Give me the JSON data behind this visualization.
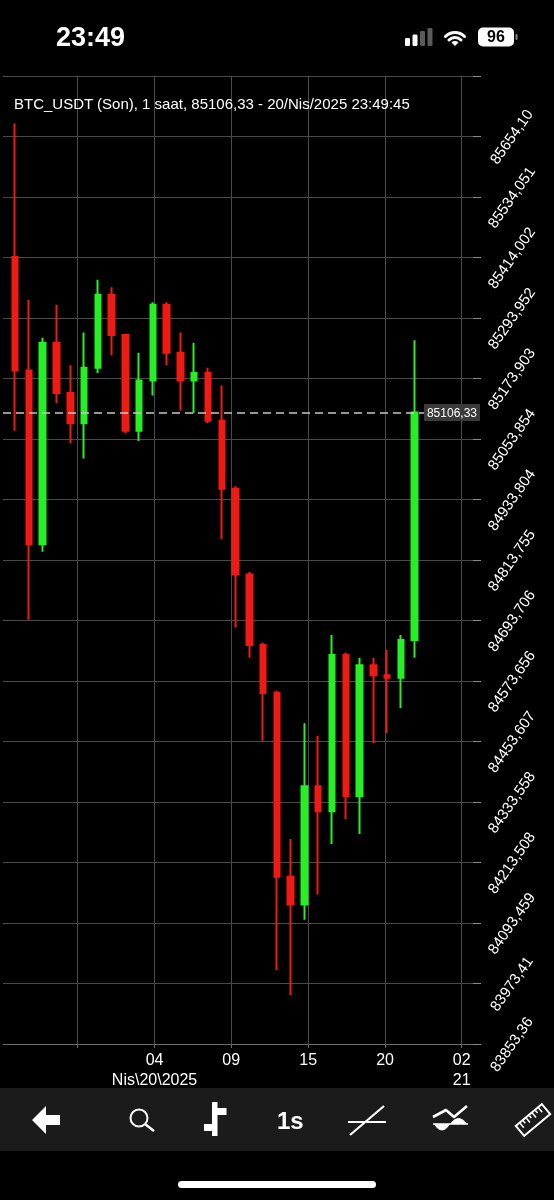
{
  "chart_data": {
    "type": "candlestick",
    "title": "BTC_USDT (Son), 1 saat, 85106,33 - 20/Nis/2025 23:49:45",
    "x": [
      "2025-04-19T18:00",
      "2025-04-19T19:00",
      "2025-04-19T20:00",
      "2025-04-19T21:00",
      "2025-04-19T22:00",
      "2025-04-19T23:00",
      "2025-04-20T00:00",
      "2025-04-20T01:00",
      "2025-04-20T02:00",
      "2025-04-20T03:00",
      "2025-04-20T04:00",
      "2025-04-20T05:00",
      "2025-04-20T06:00",
      "2025-04-20T07:00",
      "2025-04-20T08:00",
      "2025-04-20T09:00",
      "2025-04-20T10:00",
      "2025-04-20T11:00",
      "2025-04-20T12:00",
      "2025-04-20T13:00",
      "2025-04-20T14:00",
      "2025-04-20T15:00",
      "2025-04-20T16:00",
      "2025-04-20T17:00",
      "2025-04-20T18:00",
      "2025-04-20T19:00",
      "2025-04-20T20:00",
      "2025-04-20T21:00",
      "2025-04-20T22:00",
      "2025-04-20T23:00"
    ],
    "ohlc": [
      [
        85415,
        85680,
        85070,
        85190
      ],
      [
        85190,
        85330,
        84695,
        84845
      ],
      [
        84845,
        85255,
        84830,
        85245
      ],
      [
        85245,
        85320,
        85125,
        85145
      ],
      [
        85145,
        85200,
        85045,
        85085
      ],
      [
        85085,
        85265,
        85015,
        85195
      ],
      [
        85195,
        85370,
        85185,
        85340
      ],
      [
        85340,
        85355,
        85220,
        85260
      ],
      [
        85260,
        85260,
        85065,
        85070
      ],
      [
        85070,
        85225,
        85050,
        85170
      ],
      [
        85170,
        85325,
        85140,
        85320
      ],
      [
        85320,
        85325,
        85200,
        85225
      ],
      [
        85225,
        85265,
        85110,
        85170
      ],
      [
        85170,
        85245,
        85105,
        85185
      ],
      [
        85185,
        85195,
        85085,
        85090
      ],
      [
        85090,
        85160,
        84855,
        84955
      ],
      [
        84955,
        84960,
        84680,
        84785
      ],
      [
        84785,
        84790,
        84620,
        84645
      ],
      [
        84645,
        84650,
        84455,
        84550
      ],
      [
        84550,
        84555,
        84000,
        84185
      ],
      [
        84185,
        84260,
        83950,
        84130
      ],
      [
        84130,
        84490,
        84100,
        84365
      ],
      [
        84365,
        84465,
        84150,
        84315
      ],
      [
        84315,
        84665,
        84250,
        84625
      ],
      [
        84625,
        84630,
        84300,
        84345
      ],
      [
        84345,
        84620,
        84270,
        84605
      ],
      [
        84605,
        84620,
        84450,
        84585
      ],
      [
        84585,
        84635,
        84470,
        84580
      ],
      [
        84580,
        84665,
        84520,
        84655
      ],
      [
        84655,
        85250,
        84620,
        85106.33
      ]
    ],
    "colors": [
      "#f01a14",
      "#f01a14",
      "#26ef26",
      "#f01a14",
      "#f01a14",
      "#26ef26",
      "#26ef26",
      "#f01a14",
      "#f01a14",
      "#26ef26",
      "#26ef26",
      "#f01a14",
      "#f01a14",
      "#26ef26",
      "#f01a14",
      "#f01a14",
      "#f01a14",
      "#f01a14",
      "#f01a14",
      "#f01a14",
      "#f01a14",
      "#26ef26",
      "#f01a14",
      "#26ef26",
      "#f01a14",
      "#26ef26",
      "#f01a14",
      "#f01a14",
      "#26ef26",
      "#26ef26"
    ],
    "xlim": [
      "2025-04-19T17:07",
      "2025-04-21T03:49"
    ],
    "xticks": [
      {
        "value": "2025-04-19T22:32",
        "label": null
      },
      {
        "value": "2025-04-20T04:07",
        "label": "04\nNis\\20\\2025"
      },
      {
        "value": "2025-04-20T09:41",
        "label": "09"
      },
      {
        "value": "2025-04-20T15:16",
        "label": "15"
      },
      {
        "value": "2025-04-20T20:51",
        "label": "20"
      },
      {
        "value": "2025-04-21T02:25",
        "label": "02\n21"
      }
    ],
    "ylim": [
      83853.36,
      85774.15
    ],
    "yticks": [
      {
        "value": 83853.36,
        "label": "83853,36"
      },
      {
        "value": 83973.41,
        "label": "83973,41"
      },
      {
        "value": 84093.459,
        "label": "84093,459"
      },
      {
        "value": 84213.508,
        "label": "84213,508"
      },
      {
        "value": 84333.558,
        "label": "84333,558"
      },
      {
        "value": 84453.607,
        "label": "84453,607"
      },
      {
        "value": 84573.656,
        "label": "84573,656"
      },
      {
        "value": 84693.706,
        "label": "84693,706"
      },
      {
        "value": 84813.755,
        "label": "84813,755"
      },
      {
        "value": 84933.804,
        "label": "84933,804"
      },
      {
        "value": 85053.854,
        "label": "85053,854"
      },
      {
        "value": 85173.903,
        "label": "85173,903"
      },
      {
        "value": 85293.952,
        "label": "85293,952"
      },
      {
        "value": 85414.002,
        "label": "85414,002"
      },
      {
        "value": 85534.051,
        "label": "85534,051"
      },
      {
        "value": 85654.1,
        "label": "85654,10"
      },
      {
        "value": 85774.15,
        "label": null
      }
    ],
    "ref_lines": [
      {
        "axis": "y",
        "value": 85106.33,
        "label": "85106,33",
        "color": "#c8c8c8",
        "line_style": "dashed"
      }
    ],
    "grid": true,
    "annotations": [
      "23:49",
      "96",
      "1s"
    ]
  }
}
